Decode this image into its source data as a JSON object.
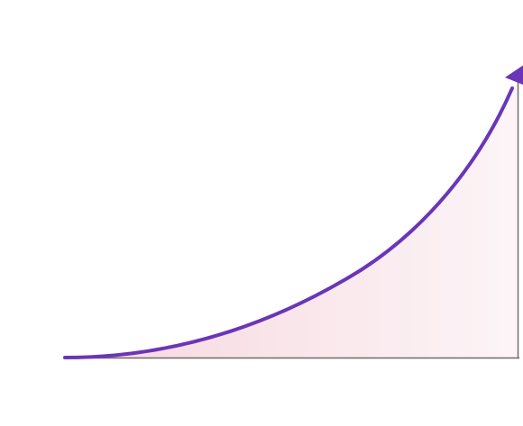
{
  "colors": {
    "background": "#ffffff",
    "curve": "#6a35b8",
    "fill_left": "#f3c9d3",
    "fill_right": "#fbf1f4",
    "axis": "#6b6b6b"
  },
  "icons": {
    "arrowhead": "arrowhead-icon"
  }
}
